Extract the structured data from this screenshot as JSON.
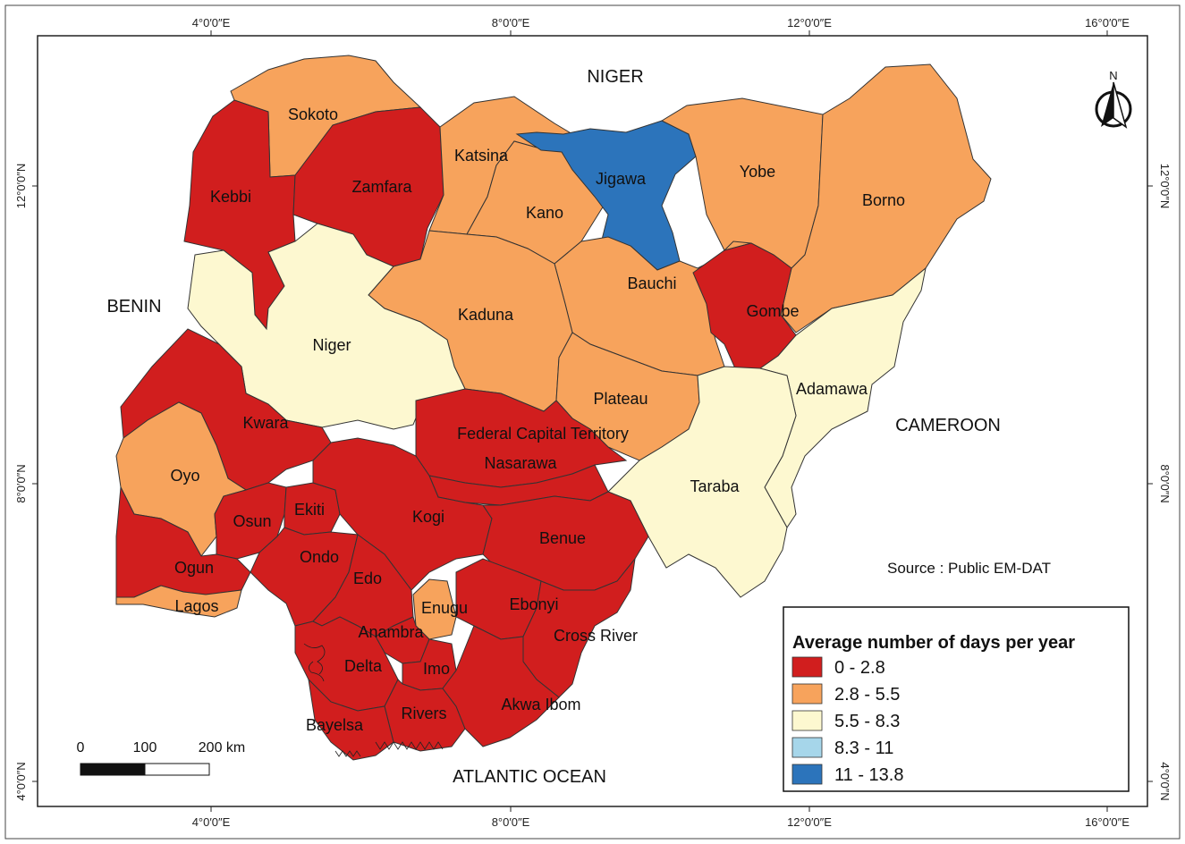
{
  "colors": {
    "class_0": "#d11e1e",
    "class_1": "#f7a35c",
    "class_2": "#fdf8d0",
    "class_3": "#a6d6ea",
    "class_4": "#2c74bb"
  },
  "graticule": {
    "longitude_labels": [
      "4°0′0″E",
      "8°0′0″E",
      "12°0′0″E",
      "16°0′0″E"
    ],
    "latitude_labels": [
      "12°0′0″N",
      "8°0′0″N",
      "4°0′0″N"
    ]
  },
  "neighbors": {
    "niger": "NIGER",
    "benin": "BENIN",
    "cameroon": "CAMEROON",
    "ocean": "ATLANTIC OCEAN"
  },
  "states": [
    {
      "name": "Sokoto",
      "class": 1
    },
    {
      "name": "Kebbi",
      "class": 0
    },
    {
      "name": "Zamfara",
      "class": 0
    },
    {
      "name": "Katsina",
      "class": 1
    },
    {
      "name": "Kano",
      "class": 1
    },
    {
      "name": "Jigawa",
      "class": 4
    },
    {
      "name": "Yobe",
      "class": 1
    },
    {
      "name": "Borno",
      "class": 1
    },
    {
      "name": "Bauchi",
      "class": 1
    },
    {
      "name": "Gombe",
      "class": 0
    },
    {
      "name": "Kaduna",
      "class": 1
    },
    {
      "name": "Niger",
      "class": 2
    },
    {
      "name": "Adamawa",
      "class": 2
    },
    {
      "name": "Plateau",
      "class": 1
    },
    {
      "name": "Taraba",
      "class": 2
    },
    {
      "name": "Kwara",
      "class": 0
    },
    {
      "name": "Federal Capital Territory",
      "class": 0
    },
    {
      "name": "Nasarawa",
      "class": 0
    },
    {
      "name": "Oyo",
      "class": 1
    },
    {
      "name": "Osun",
      "class": 0
    },
    {
      "name": "Ekiti",
      "class": 0
    },
    {
      "name": "Kogi",
      "class": 0
    },
    {
      "name": "Benue",
      "class": 0
    },
    {
      "name": "Ondo",
      "class": 0
    },
    {
      "name": "Ogun",
      "class": 0
    },
    {
      "name": "Edo",
      "class": 0
    },
    {
      "name": "Lagos",
      "class": 1
    },
    {
      "name": "Enugu",
      "class": 1
    },
    {
      "name": "Ebonyi",
      "class": 0
    },
    {
      "name": "Anambra",
      "class": 0
    },
    {
      "name": "Cross River",
      "class": 0
    },
    {
      "name": "Delta",
      "class": 0
    },
    {
      "name": "Imo",
      "class": 0
    },
    {
      "name": "Rivers",
      "class": 0
    },
    {
      "name": "Akwa Ibom",
      "class": 0
    },
    {
      "name": "Bayelsa",
      "class": 0
    }
  ],
  "legend": {
    "title": "Average number of days per year",
    "classes": [
      "0 - 2.8",
      "2.8 - 5.5",
      "5.5 - 8.3",
      "8.3 - 11",
      "11 - 13.8"
    ]
  },
  "scale_bar": {
    "labels": [
      "0",
      "100",
      "200 km"
    ]
  },
  "north_arrow": {
    "label": "N",
    "icon": "north-arrow-icon"
  },
  "source": "Source : Public EM-DAT"
}
